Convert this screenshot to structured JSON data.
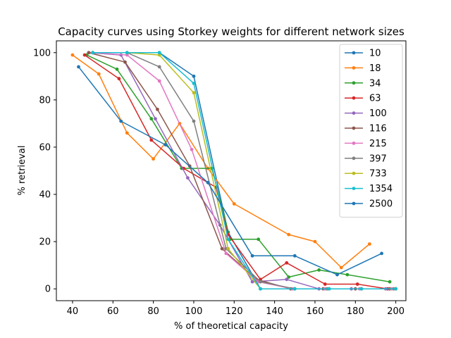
{
  "chart_data": {
    "type": "line",
    "title": "Capacity curves using Storkey weights for different network sizes",
    "xlabel": "% of theoretical capacity",
    "ylabel": "% retrieval",
    "xlim": [
      32,
      205
    ],
    "ylim": [
      -5,
      105
    ],
    "xticks": [
      40,
      60,
      80,
      100,
      120,
      140,
      160,
      180,
      200
    ],
    "yticks": [
      0,
      20,
      40,
      60,
      80,
      100
    ],
    "grid": false,
    "legend_position": "top-right",
    "series": [
      {
        "name": "10",
        "color": "#1f77b4",
        "x": [
          50,
          67,
          83,
          100,
          117,
          133,
          150,
          167,
          183,
          200
        ],
        "y": [
          100,
          100,
          100,
          90,
          24,
          0,
          0,
          0,
          0,
          0
        ]
      },
      {
        "name": "18",
        "color": "#ff7f0e",
        "x": [
          40,
          53,
          67,
          80,
          93,
          107,
          120,
          147,
          160,
          173,
          187
        ],
        "y": [
          99,
          91,
          66,
          55,
          70,
          51,
          36,
          23,
          20,
          9,
          19
        ]
      },
      {
        "name": "34",
        "color": "#2ca02c",
        "x": [
          47,
          62,
          79,
          94,
          109,
          118,
          132,
          147,
          162,
          176,
          197
        ],
        "y": [
          99,
          93,
          72,
          51,
          51,
          21,
          21,
          5,
          8,
          6,
          3
        ]
      },
      {
        "name": "63",
        "color": "#d62728",
        "x": [
          46,
          63,
          79,
          95,
          111,
          117,
          133,
          146,
          165,
          181,
          196
        ],
        "y": [
          99,
          89,
          63,
          51,
          43,
          23,
          4,
          11,
          2,
          2,
          0
        ]
      },
      {
        "name": "100",
        "color": "#9467bd",
        "x": [
          48,
          64,
          81,
          97,
          113,
          129,
          146,
          162,
          178,
          195
        ],
        "y": [
          100,
          99,
          72,
          47,
          27,
          3,
          4,
          0,
          0,
          0
        ]
      },
      {
        "name": "116",
        "color": "#8c564b",
        "x": [
          48,
          66,
          82,
          98,
          114,
          131,
          148,
          164,
          180,
          197
        ],
        "y": [
          100,
          96,
          76,
          52,
          17,
          4,
          0,
          0,
          0,
          0
        ]
      },
      {
        "name": "215",
        "color": "#e377c2",
        "x": [
          50,
          67,
          83,
          99,
          116,
          132,
          149,
          165,
          182,
          198
        ],
        "y": [
          100,
          99,
          88,
          59,
          15,
          3,
          0,
          0,
          0,
          0
        ]
      },
      {
        "name": "397",
        "color": "#7f7f7f",
        "x": [
          50,
          67,
          83,
          100,
          116,
          133,
          150,
          166,
          183,
          199
        ],
        "y": [
          100,
          100,
          94,
          71,
          17,
          3,
          0,
          0,
          0,
          0
        ]
      },
      {
        "name": "733",
        "color": "#bcbd22",
        "x": [
          50,
          67,
          83,
          100,
          117,
          133,
          150,
          167,
          183,
          200
        ],
        "y": [
          100,
          100,
          99,
          83,
          17,
          0,
          0,
          0,
          0,
          0
        ]
      },
      {
        "name": "1354",
        "color": "#17becf",
        "x": [
          50,
          67,
          83,
          100,
          117,
          133,
          150,
          167,
          183,
          200
        ],
        "y": [
          100,
          100,
          100,
          87,
          21,
          0,
          0,
          0,
          0,
          0
        ]
      },
      {
        "name": "2500",
        "color": "#1f77b4",
        "x": [
          43,
          64,
          86,
          107,
          129,
          150,
          171,
          193
        ],
        "y": [
          94,
          71,
          61,
          45,
          14,
          14,
          6,
          15
        ]
      }
    ]
  }
}
